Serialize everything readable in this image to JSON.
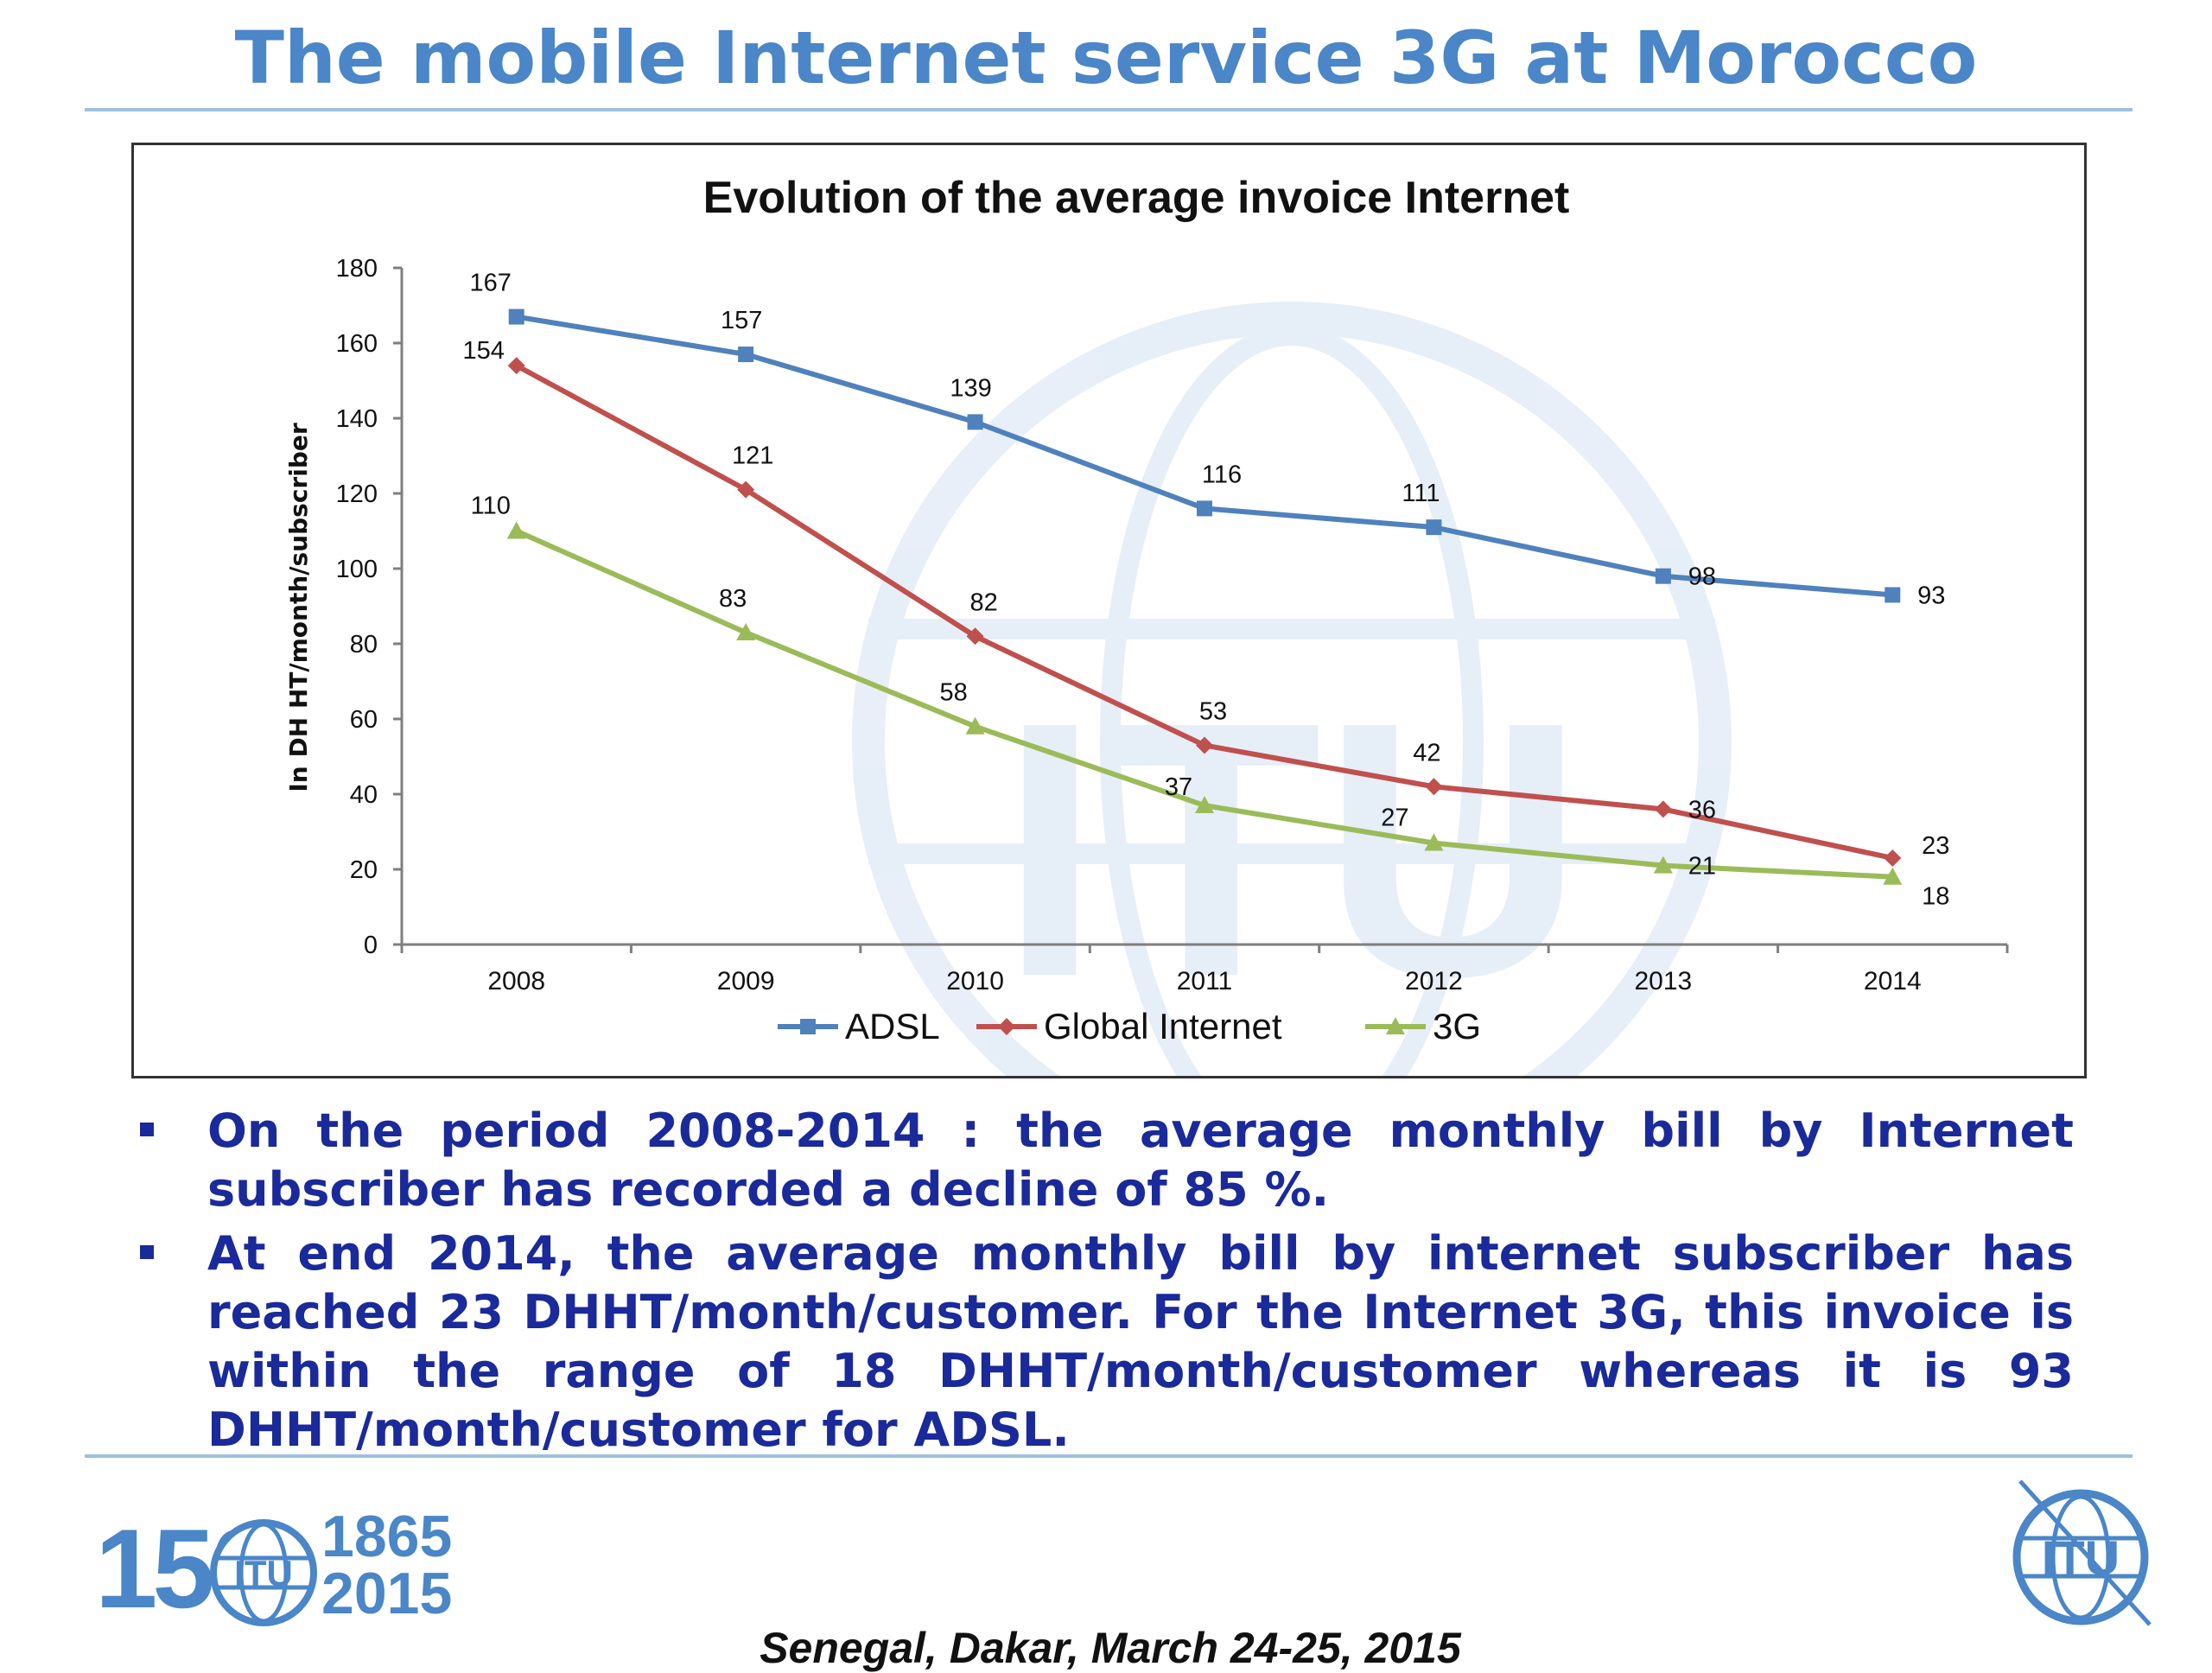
{
  "page": {
    "title": "The mobile Internet service 3G at Morocco"
  },
  "chart_data": {
    "type": "line",
    "title": "Evolution of the average invoice Internet",
    "ylabel": "In DH HT/month/subscriber",
    "xlabel": "",
    "categories": [
      "2008",
      "2009",
      "2010",
      "2011",
      "2012",
      "2013",
      "2014"
    ],
    "ylim": [
      0,
      180
    ],
    "yticks": [
      0,
      20,
      40,
      60,
      80,
      100,
      120,
      140,
      160,
      180
    ],
    "grid": false,
    "legend": "bottom",
    "series": [
      {
        "name": "ADSL",
        "color": "#4f81bd",
        "marker": "square",
        "values": [
          167,
          157,
          139,
          116,
          111,
          98,
          93
        ]
      },
      {
        "name": "Global Internet",
        "color": "#c0504d",
        "marker": "diamond",
        "values": [
          154,
          121,
          82,
          53,
          42,
          36,
          23
        ]
      },
      {
        "name": "3G",
        "color": "#9bbb59",
        "marker": "triangle",
        "values": [
          110,
          83,
          58,
          37,
          27,
          21,
          18
        ]
      }
    ]
  },
  "bullets": [
    "On the period 2008-2014 : the average monthly bill by Internet subscriber has recorded a decline of 85 %.",
    "At end 2014, the average monthly bill by internet subscriber  has reached 23 DHHT/month/customer. For the Internet 3G, this invoice is within the range of 18 DHHT/month/customer  whereas it is 93 DHHT/month/customer for ADSL."
  ],
  "footer": {
    "anniversary_number": "150",
    "year_start": "1865",
    "year_end": "2015",
    "caption": "Senegal, Dakar, March 24-25, 2015",
    "logo_text": "ITU"
  },
  "colors": {
    "title": "#4a86c8",
    "bullet_text": "#1a2a9a",
    "rule": "#9fc0e0"
  }
}
